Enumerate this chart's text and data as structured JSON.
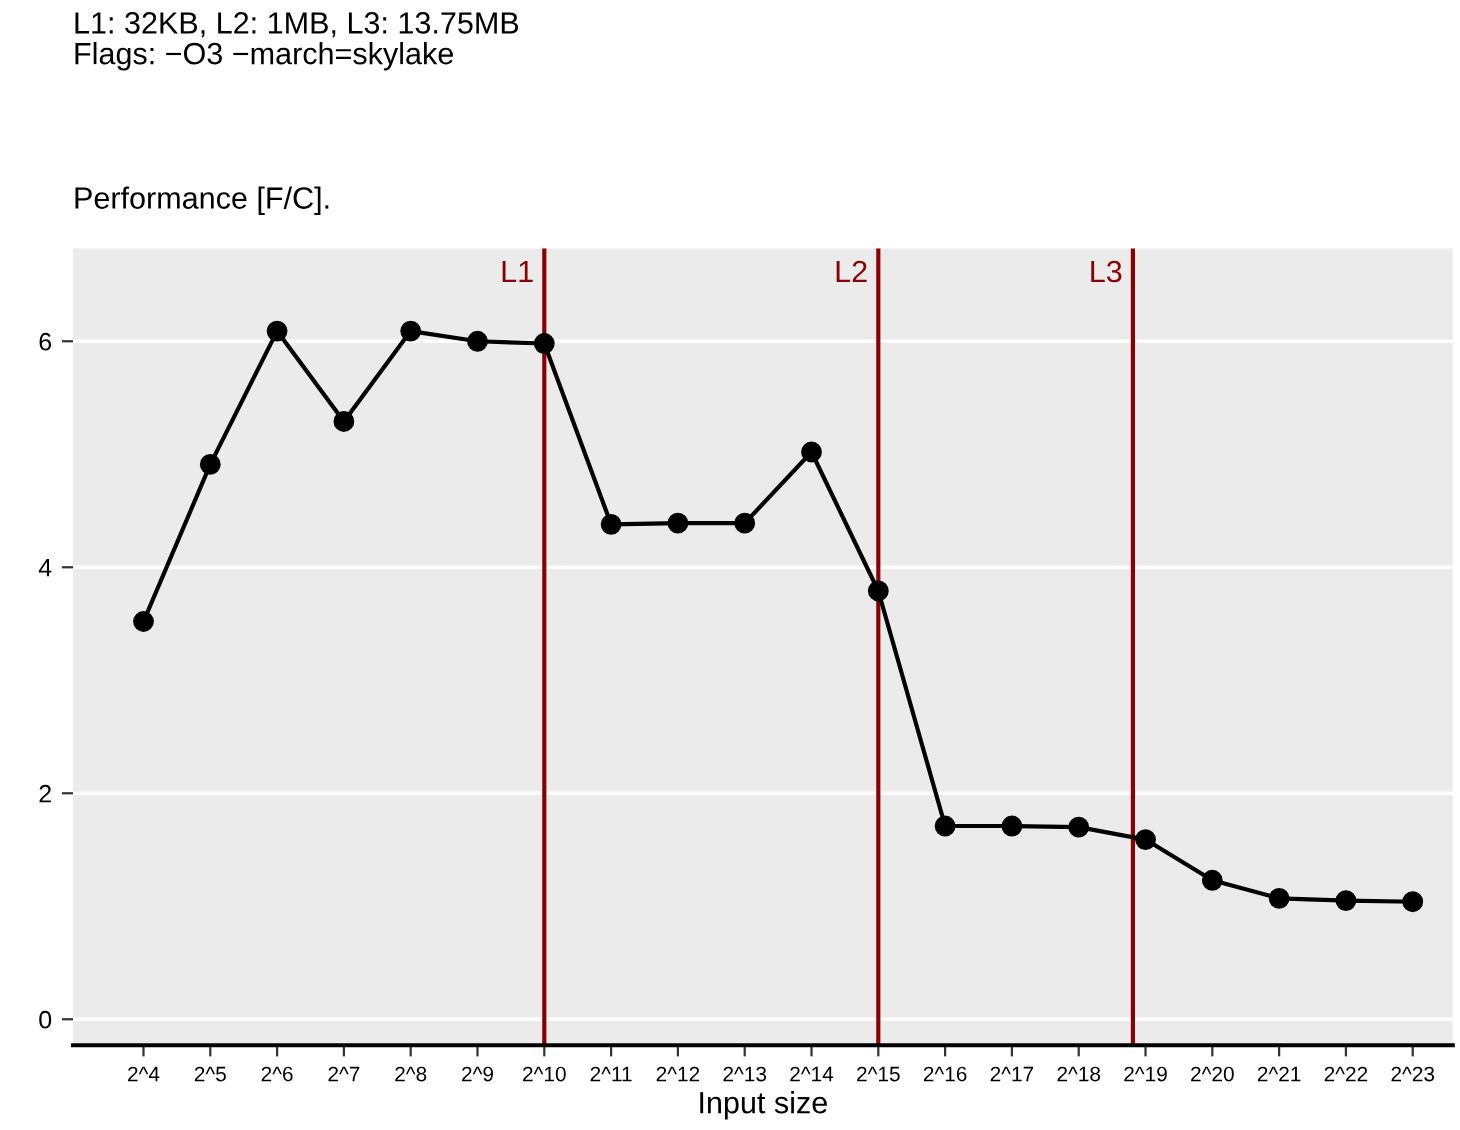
{
  "chart_data": {
    "type": "line",
    "title": "L1: 32KB, L2: 1MB, L3: 13.75MB\nFlags: −O3 −march=skylake",
    "subtitle": "Performance [F/C].",
    "xlabel": "Input size",
    "x": [
      16,
      32,
      64,
      128,
      256,
      512,
      1024,
      2048,
      4096,
      8192,
      16384,
      32768,
      65536,
      131072,
      262144,
      524288,
      1048576,
      2097152,
      4194304,
      8388608
    ],
    "log": "x",
    "series": [
      {
        "color": "#000000",
        "values": [
          3.52,
          4.91,
          6.09,
          5.29,
          6.09,
          6.0,
          5.98,
          4.38,
          4.39,
          4.39,
          5.02,
          3.79,
          1.71,
          1.71,
          1.7,
          1.59,
          1.23,
          1.07,
          1.05,
          1.04
        ]
      }
    ],
    "xlim": [
      7.7,
      12700000
    ],
    "xticks": [
      {
        "value": 16,
        "label": "2^4"
      },
      {
        "value": 32,
        "label": "2^5"
      },
      {
        "value": 64,
        "label": "2^6"
      },
      {
        "value": 128,
        "label": "2^7"
      },
      {
        "value": 256,
        "label": "2^8"
      },
      {
        "value": 512,
        "label": "2^9"
      },
      {
        "value": 1024,
        "label": "2^10"
      },
      {
        "value": 2048,
        "label": "2^11"
      },
      {
        "value": 4096,
        "label": "2^12"
      },
      {
        "value": 8192,
        "label": "2^13"
      },
      {
        "value": 16384,
        "label": "2^14"
      },
      {
        "value": 32768,
        "label": "2^15"
      },
      {
        "value": 65536,
        "label": "2^16"
      },
      {
        "value": 131072,
        "label": "2^17"
      },
      {
        "value": 262144,
        "label": "2^18"
      },
      {
        "value": 524288,
        "label": "2^19"
      },
      {
        "value": 1048576,
        "label": "2^20"
      },
      {
        "value": 2097152,
        "label": "2^21"
      },
      {
        "value": 4194304,
        "label": "2^22"
      },
      {
        "value": 8388608,
        "label": "2^23"
      }
    ],
    "ylim": [
      -0.23,
      6.82
    ],
    "yticks": [
      0,
      2,
      4,
      6
    ],
    "ref_lines": [
      {
        "axis": "x",
        "value": 1024,
        "label": "L1",
        "color": "#8b0000"
      },
      {
        "axis": "x",
        "value": 32768,
        "label": "L2",
        "color": "#8b0000"
      },
      {
        "axis": "x",
        "value": 460000,
        "label": "L3",
        "color": "#8b0000"
      }
    ],
    "grid": "y",
    "marker": "circle",
    "line_style": "solid"
  }
}
